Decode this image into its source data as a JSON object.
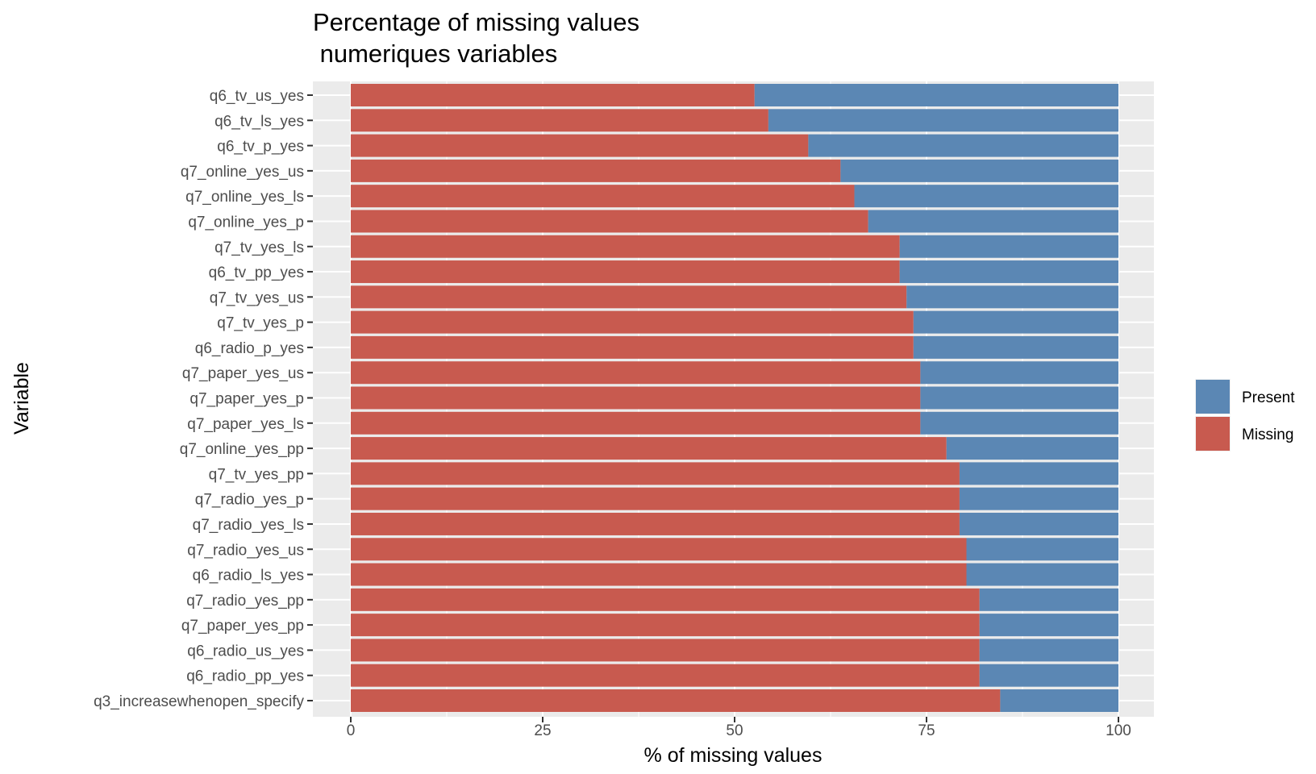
{
  "chart_data": {
    "type": "bar",
    "orientation": "horizontal",
    "stacked": true,
    "title_lines": [
      "Percentage of missing values",
      " numeriques variables"
    ],
    "xlabel": "% of missing values",
    "ylabel": "Variable",
    "xlim": [
      0,
      100
    ],
    "xticks": [
      0,
      25,
      50,
      75,
      100
    ],
    "grid": true,
    "legend_position": "right",
    "categories": [
      "q6_tv_us_yes",
      "q6_tv_ls_yes",
      "q6_tv_p_yes",
      "q7_online_yes_us",
      "q7_online_yes_ls",
      "q7_online_yes_p",
      "q7_tv_yes_ls",
      "q6_tv_pp_yes",
      "q7_tv_yes_us",
      "q7_tv_yes_p",
      "q6_radio_p_yes",
      "q7_paper_yes_us",
      "q7_paper_yes_p",
      "q7_paper_yes_ls",
      "q7_online_yes_pp",
      "q7_tv_yes_pp",
      "q7_radio_yes_p",
      "q7_radio_yes_ls",
      "q7_radio_yes_us",
      "q6_radio_ls_yes",
      "q7_radio_yes_pp",
      "q7_paper_yes_pp",
      "q6_radio_us_yes",
      "q6_radio_pp_yes",
      "q3_increasewhenopen_specify"
    ],
    "series": [
      {
        "name": "Missing",
        "color": "#c85a4f",
        "values": [
          52.6,
          54.4,
          59.6,
          63.8,
          65.6,
          67.4,
          71.5,
          71.5,
          72.4,
          73.3,
          73.3,
          74.2,
          74.2,
          74.2,
          77.6,
          79.3,
          79.3,
          79.3,
          80.2,
          80.2,
          81.9,
          81.9,
          81.9,
          81.9,
          84.6
        ]
      },
      {
        "name": "Present",
        "color": "#5b87b4",
        "values": [
          47.4,
          45.6,
          40.4,
          36.2,
          34.4,
          32.6,
          28.5,
          28.5,
          27.6,
          26.7,
          26.7,
          25.8,
          25.8,
          25.8,
          22.4,
          20.7,
          20.7,
          20.7,
          19.8,
          19.8,
          18.1,
          18.1,
          18.1,
          18.1,
          15.4
        ]
      }
    ],
    "legend": [
      {
        "label": "Present",
        "color": "#5b87b4"
      },
      {
        "label": "Missing",
        "color": "#c85a4f"
      }
    ]
  }
}
